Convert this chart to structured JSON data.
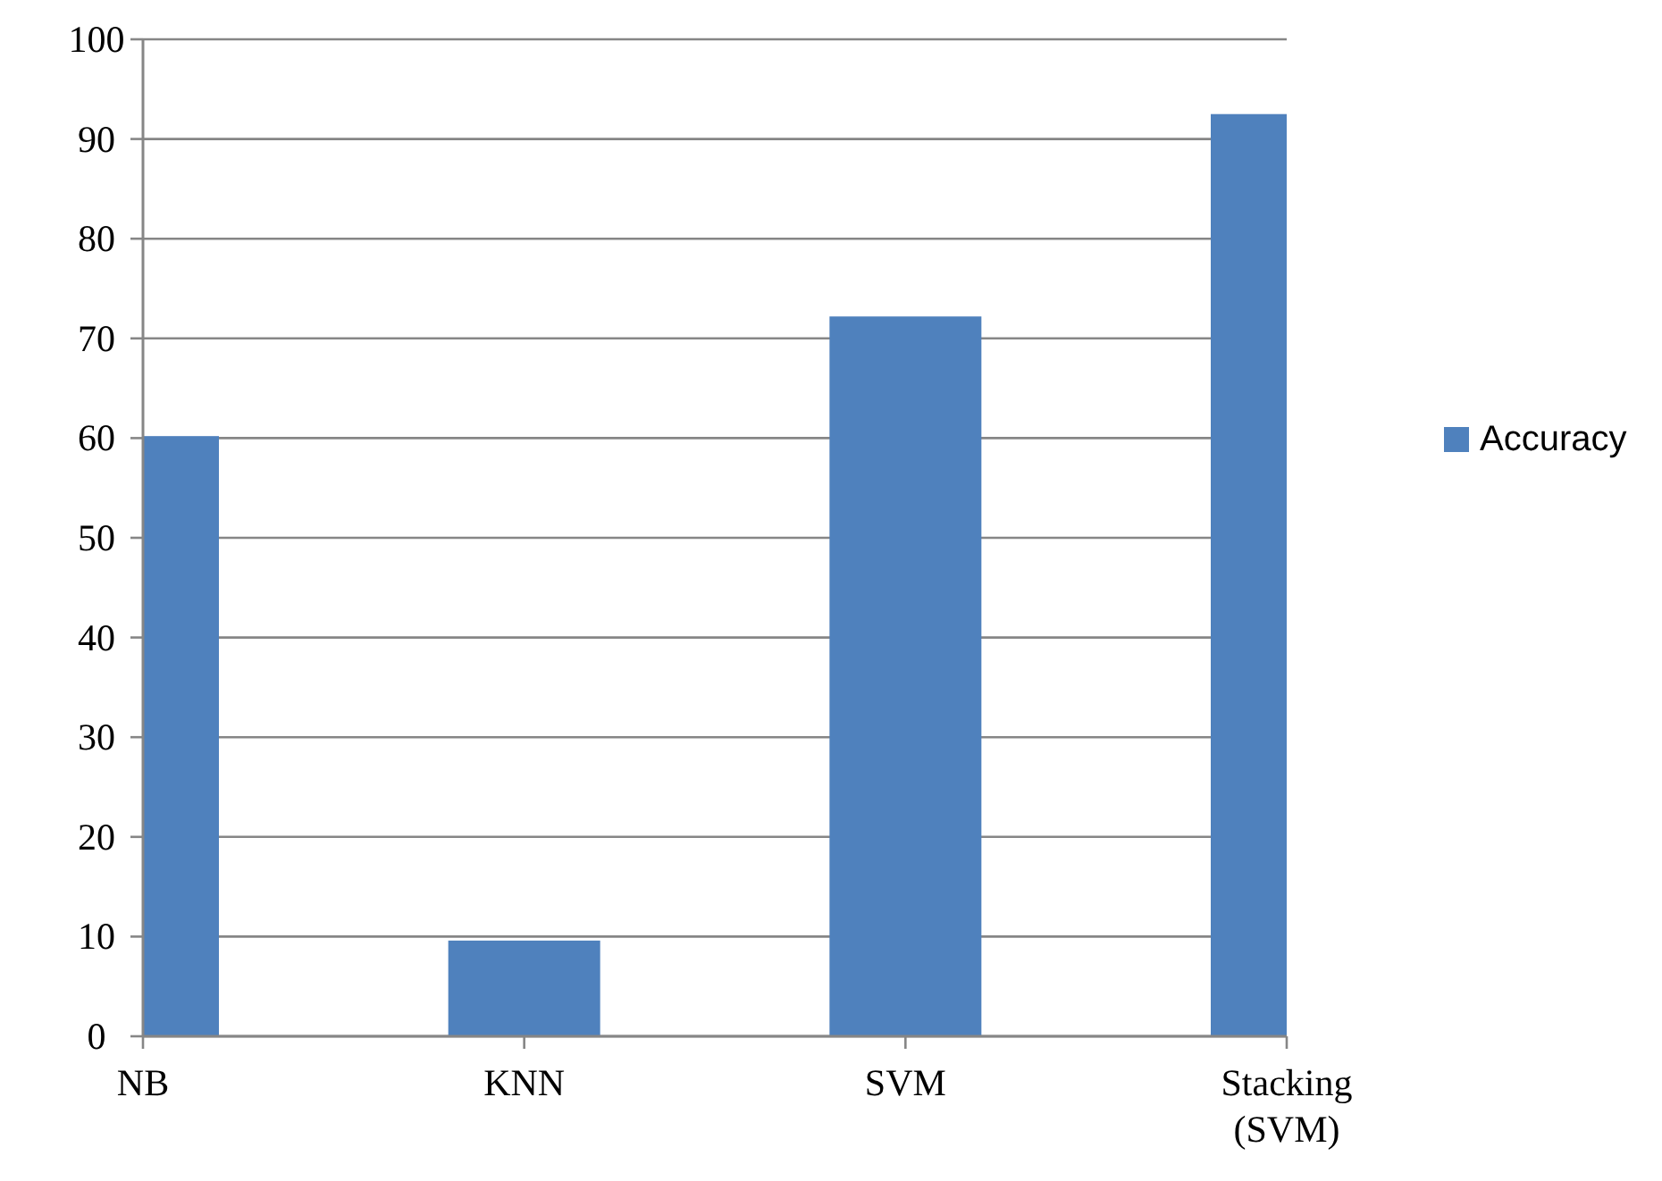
{
  "chart_data": {
    "type": "bar",
    "categories": [
      "NB",
      "KNN",
      "SVM",
      "Stacking (SVM)"
    ],
    "series": [
      {
        "name": "Accuracy",
        "color": "#4f81bd",
        "values": [
          60.2,
          9.6,
          72.2,
          92.5
        ]
      }
    ],
    "ylim": [
      0,
      100
    ],
    "yticks": [
      0,
      10,
      20,
      30,
      40,
      50,
      60,
      70,
      80,
      90,
      100
    ],
    "grid": "y",
    "legend": "right"
  }
}
